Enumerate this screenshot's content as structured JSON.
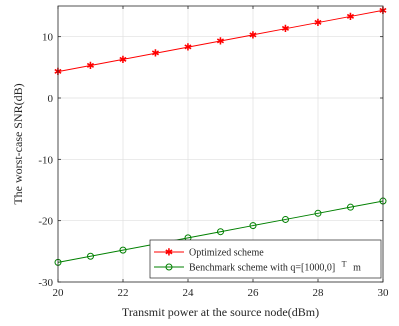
{
  "chart_data": {
    "type": "line",
    "xlabel": "Transmit power at the source node(dBm)",
    "ylabel": "The worst-case SNR(dB)",
    "xlim": [
      20,
      30
    ],
    "ylim": [
      -30,
      15
    ],
    "xticks": [
      20,
      22,
      24,
      26,
      28,
      30
    ],
    "yticks": [
      -30,
      -20,
      -10,
      0,
      10
    ],
    "grid": true,
    "legend_position": "bottom-right",
    "series": [
      {
        "name": "Optimized scheme",
        "color": "#ff0000",
        "marker": "star",
        "x": [
          20,
          21,
          22,
          23,
          24,
          25,
          26,
          27,
          28,
          29,
          30
        ],
        "values": [
          4.3,
          5.3,
          6.3,
          7.3,
          8.3,
          9.3,
          10.3,
          11.3,
          12.3,
          13.3,
          14.3
        ]
      },
      {
        "name": "Benchmark scheme with q=[1000,0]",
        "name_superscript": "T",
        "name_suffix": "m",
        "color": "#008000",
        "marker": "circle",
        "x": [
          20,
          21,
          22,
          23,
          24,
          25,
          26,
          27,
          28,
          29,
          30
        ],
        "values": [
          -26.8,
          -25.8,
          -24.8,
          -23.8,
          -22.8,
          -21.8,
          -20.8,
          -19.8,
          -18.8,
          -17.8,
          -16.8
        ]
      }
    ]
  }
}
